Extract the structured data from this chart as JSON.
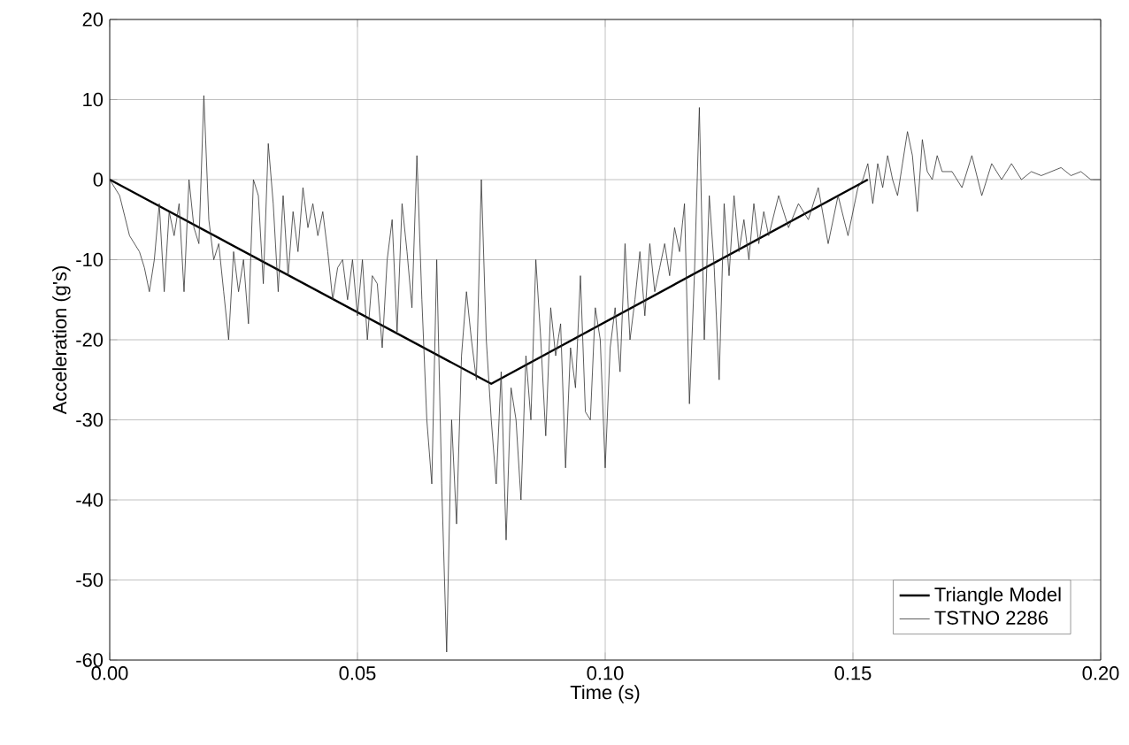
{
  "chart_data": {
    "type": "line",
    "xlabel": "Time (s)",
    "ylabel": "Acceleration (g's)",
    "xlim": [
      0,
      0.2
    ],
    "ylim": [
      -60,
      20
    ],
    "xticks": [
      {
        "value": 0,
        "label": "0.00"
      },
      {
        "value": 0.05,
        "label": "0.05"
      },
      {
        "value": 0.1,
        "label": "0.10"
      },
      {
        "value": 0.15,
        "label": "0.15"
      },
      {
        "value": 0.2,
        "label": "0.20"
      }
    ],
    "yticks": [
      -60,
      -50,
      -40,
      -30,
      -20,
      -10,
      0,
      10,
      20
    ],
    "grid": true,
    "legend": "bottom right",
    "marker": "none",
    "line_style": "solid",
    "series": [
      {
        "name": "Triangle Model",
        "color": "#000000",
        "x": [
          0,
          0.077,
          0.153
        ],
        "values": [
          0,
          -25.5,
          0
        ]
      },
      {
        "name": "TSTNO 2286",
        "color": "#333333",
        "x": [
          0,
          0.002,
          0.004,
          0.006,
          0.007,
          0.008,
          0.009,
          0.01,
          0.011,
          0.012,
          0.013,
          0.014,
          0.015,
          0.016,
          0.017,
          0.018,
          0.019,
          0.02,
          0.021,
          0.022,
          0.023,
          0.024,
          0.025,
          0.026,
          0.027,
          0.028,
          0.029,
          0.03,
          0.031,
          0.032,
          0.033,
          0.034,
          0.035,
          0.036,
          0.037,
          0.038,
          0.039,
          0.04,
          0.041,
          0.042,
          0.043,
          0.044,
          0.045,
          0.046,
          0.047,
          0.048,
          0.049,
          0.05,
          0.051,
          0.052,
          0.053,
          0.054,
          0.055,
          0.056,
          0.057,
          0.058,
          0.059,
          0.06,
          0.061,
          0.062,
          0.063,
          0.064,
          0.065,
          0.066,
          0.067,
          0.068,
          0.069,
          0.07,
          0.071,
          0.072,
          0.073,
          0.074,
          0.075,
          0.076,
          0.077,
          0.078,
          0.079,
          0.08,
          0.081,
          0.082,
          0.083,
          0.084,
          0.085,
          0.086,
          0.087,
          0.088,
          0.089,
          0.09,
          0.091,
          0.092,
          0.093,
          0.094,
          0.095,
          0.096,
          0.097,
          0.098,
          0.099,
          0.1,
          0.101,
          0.102,
          0.103,
          0.104,
          0.105,
          0.106,
          0.107,
          0.108,
          0.109,
          0.11,
          0.111,
          0.112,
          0.113,
          0.114,
          0.115,
          0.116,
          0.117,
          0.118,
          0.119,
          0.12,
          0.121,
          0.122,
          0.123,
          0.124,
          0.125,
          0.126,
          0.127,
          0.128,
          0.129,
          0.13,
          0.131,
          0.132,
          0.133,
          0.135,
          0.137,
          0.139,
          0.141,
          0.143,
          0.145,
          0.147,
          0.149,
          0.151,
          0.152,
          0.153,
          0.154,
          0.155,
          0.156,
          0.157,
          0.158,
          0.159,
          0.16,
          0.161,
          0.162,
          0.163,
          0.164,
          0.165,
          0.166,
          0.167,
          0.168,
          0.17,
          0.172,
          0.174,
          0.176,
          0.178,
          0.18,
          0.182,
          0.184,
          0.186,
          0.188,
          0.19,
          0.192,
          0.194,
          0.196,
          0.198,
          0.2
        ],
        "values": [
          0,
          -2,
          -7,
          -9,
          -11,
          -14,
          -10,
          -3,
          -14,
          -4,
          -7,
          -3,
          -14,
          0,
          -6,
          -8,
          10.5,
          -5,
          -10,
          -8,
          -14,
          -20,
          -9,
          -14,
          -10,
          -18,
          0,
          -2,
          -13,
          4.5,
          -3,
          -14,
          -2,
          -12,
          -4,
          -9,
          -1,
          -6,
          -3,
          -7,
          -4,
          -9,
          -15,
          -11,
          -10,
          -15,
          -10,
          -17,
          -10,
          -20,
          -12,
          -13,
          -21,
          -10,
          -5,
          -19,
          -3,
          -9,
          -16,
          3,
          -15,
          -30,
          -38,
          -10,
          -38,
          -59,
          -30,
          -43,
          -22,
          -14,
          -20,
          -25,
          0,
          -20,
          -30,
          -38,
          -24,
          -45,
          -26,
          -30,
          -40,
          -22,
          -30,
          -10,
          -20,
          -32,
          -16,
          -22,
          -18,
          -36,
          -21,
          -26,
          -12,
          -29,
          -30,
          -16,
          -20,
          -36,
          -21,
          -16,
          -24,
          -8,
          -20,
          -15,
          -9,
          -17,
          -8,
          -14,
          -11,
          -8,
          -12,
          -6,
          -9,
          -3,
          -28,
          -12,
          9,
          -20,
          -2,
          -11,
          -25,
          -3,
          -12,
          -2,
          -9,
          -5,
          -10,
          -3,
          -8,
          -4,
          -7,
          -2,
          -6,
          -3,
          -5,
          -1,
          -8,
          -2,
          -7,
          -1,
          0,
          2,
          -3,
          2,
          -1,
          3,
          0,
          -2,
          2,
          6,
          3,
          -4,
          5,
          1,
          0,
          3,
          1,
          1,
          -1,
          3,
          -2,
          2,
          0,
          2,
          0,
          1,
          0.5,
          1,
          1.5,
          0.5,
          1,
          0,
          0
        ]
      }
    ]
  }
}
